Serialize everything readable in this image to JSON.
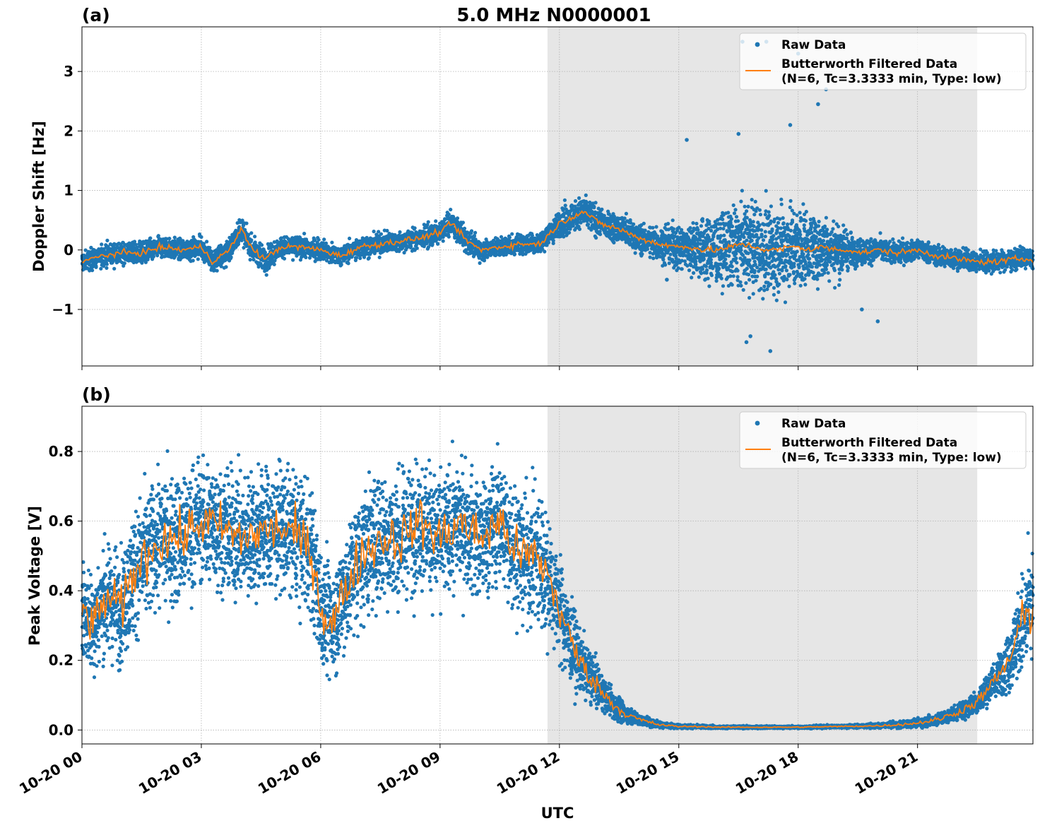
{
  "figure": {
    "title": "5.0 MHz N0000001",
    "xlabel": "UTC"
  },
  "colors": {
    "raw": "#1f77b4",
    "filtered": "#ff7f0e",
    "shade": "#e6e6e6",
    "grid": "#b0b0b0"
  },
  "chart_data": [
    {
      "type": "scatter",
      "panel_label": "(a)",
      "ylabel": "Doppler Shift [Hz]",
      "xlim_hours": [
        0,
        23.9
      ],
      "ylim": [
        -1.95,
        3.75
      ],
      "yticks": [
        -1,
        0,
        1,
        2,
        3
      ],
      "ytick_labels": [
        "−1",
        "0",
        "1",
        "2",
        "3"
      ],
      "xticks_hours": [
        0,
        3,
        6,
        9,
        12,
        15,
        18,
        21
      ],
      "grid": true,
      "legend_position": "top-right",
      "shaded_region_hours": [
        11.7,
        22.5
      ],
      "series": [
        {
          "name": "Raw Data",
          "style": "points",
          "x_hours": [
            0,
            0.5,
            1,
            1.5,
            2,
            2.5,
            3,
            3.3,
            3.7,
            4,
            4.3,
            4.6,
            5,
            5.5,
            6,
            6.5,
            7,
            7.5,
            8,
            8.5,
            9,
            9.3,
            9.6,
            10,
            10.5,
            11,
            11.5,
            11.8,
            12,
            12.3,
            12.6,
            13,
            13.5,
            14,
            14.5,
            15,
            15.3,
            15.6,
            16,
            16.3,
            16.6,
            16.9,
            17.2,
            17.5,
            17.8,
            18,
            18.3,
            18.6,
            19,
            19.3,
            19.6,
            20,
            20.5,
            21,
            21.5,
            22,
            22.5,
            23,
            23.5,
            23.9
          ],
          "y_center": [
            -0.2,
            -0.1,
            -0.05,
            -0.05,
            0.05,
            0,
            0.05,
            -0.2,
            0,
            0.35,
            0,
            -0.15,
            0.05,
            0.05,
            0,
            -0.1,
            0.05,
            0.1,
            0.15,
            0.2,
            0.3,
            0.45,
            0.2,
            0,
            0.05,
            0.1,
            0.1,
            0.3,
            0.45,
            0.55,
            0.65,
            0.45,
            0.35,
            0.2,
            0.1,
            0.05,
            0.05,
            0,
            0,
            0.05,
            0.1,
            0.05,
            0,
            0,
            0.05,
            0.05,
            0,
            0.05,
            0,
            0,
            -0.05,
            0,
            -0.05,
            0,
            -0.1,
            -0.15,
            -0.2,
            -0.2,
            -0.15,
            -0.15
          ],
          "y_spread": [
            0.3,
            0.3,
            0.3,
            0.3,
            0.3,
            0.3,
            0.3,
            0.35,
            0.35,
            0.35,
            0.35,
            0.35,
            0.3,
            0.3,
            0.3,
            0.3,
            0.3,
            0.3,
            0.3,
            0.3,
            0.3,
            0.3,
            0.35,
            0.3,
            0.3,
            0.3,
            0.3,
            0.35,
            0.4,
            0.45,
            0.45,
            0.4,
            0.4,
            0.4,
            0.5,
            0.7,
            0.8,
            0.9,
            1.0,
            1.1,
            1.2,
            1.3,
            1.3,
            1.2,
            1.2,
            1.2,
            1.0,
            1.0,
            0.8,
            0.5,
            0.4,
            0.35,
            0.3,
            0.3,
            0.3,
            0.3,
            0.3,
            0.3,
            0.3,
            0.3
          ],
          "outliers": [
            [
              16.6,
              3.5
            ],
            [
              17.2,
              3.5
            ],
            [
              18,
              3.3
            ],
            [
              18.7,
              2.7
            ],
            [
              18.5,
              2.45
            ],
            [
              16.5,
              1.95
            ],
            [
              17.8,
              2.1
            ],
            [
              15.2,
              1.85
            ],
            [
              16.8,
              -1.45
            ],
            [
              17.3,
              -1.7
            ],
            [
              16.7,
              -1.55
            ],
            [
              20,
              -1.2
            ],
            [
              19.6,
              -1.0
            ],
            [
              14.7,
              -0.5
            ]
          ]
        },
        {
          "name": "Butterworth Filtered Data\n(N=6, Tc=3.3333 min, Type: low)",
          "legend_lines": [
            "Butterworth Filtered Data",
            "(N=6, Tc=3.3333 min, Type: low)"
          ],
          "style": "line",
          "x_hours": [
            0,
            0.5,
            1,
            1.5,
            2,
            2.5,
            3,
            3.3,
            3.7,
            4,
            4.3,
            4.6,
            5,
            5.5,
            6,
            6.5,
            7,
            7.5,
            8,
            8.5,
            9,
            9.3,
            9.6,
            10,
            10.5,
            11,
            11.5,
            11.8,
            12,
            12.3,
            12.6,
            13,
            13.5,
            14,
            14.5,
            15,
            15.3,
            15.6,
            16,
            16.3,
            16.6,
            16.9,
            17.2,
            17.5,
            17.8,
            18,
            18.3,
            18.6,
            19,
            19.3,
            19.6,
            20,
            20.5,
            21,
            21.5,
            22,
            22.5,
            23,
            23.5,
            23.9
          ],
          "y": [
            -0.2,
            -0.1,
            -0.05,
            -0.05,
            0.05,
            0,
            0.05,
            -0.2,
            0,
            0.35,
            0,
            -0.15,
            0.05,
            0.05,
            0,
            -0.1,
            0.05,
            0.1,
            0.15,
            0.2,
            0.3,
            0.45,
            0.2,
            0,
            0.05,
            0.1,
            0.1,
            0.3,
            0.45,
            0.55,
            0.65,
            0.45,
            0.35,
            0.2,
            0.1,
            0.05,
            0.05,
            0,
            0,
            0.05,
            0.1,
            0.05,
            0,
            0,
            0.05,
            0.05,
            0,
            0.05,
            0,
            0,
            -0.05,
            0,
            -0.05,
            0,
            -0.1,
            -0.15,
            -0.2,
            -0.2,
            -0.15,
            -0.15
          ]
        }
      ]
    },
    {
      "type": "scatter",
      "panel_label": "(b)",
      "ylabel": "Peak Voltage [V]",
      "xlim_hours": [
        0,
        23.9
      ],
      "ylim": [
        -0.04,
        0.93
      ],
      "yticks": [
        0.0,
        0.2,
        0.4,
        0.6,
        0.8
      ],
      "ytick_labels": [
        "0.0",
        "0.2",
        "0.4",
        "0.6",
        "0.8"
      ],
      "xticks_hours": [
        0,
        3,
        6,
        9,
        12,
        15,
        18,
        21
      ],
      "xtick_labels": [
        "10-20 00",
        "10-20 03",
        "10-20 06",
        "10-20 09",
        "10-20 12",
        "10-20 15",
        "10-20 18",
        "10-20 21"
      ],
      "grid": true,
      "legend_position": "top-right",
      "shaded_region_hours": [
        11.7,
        22.5
      ],
      "series": [
        {
          "name": "Raw Data",
          "style": "points",
          "x_hours": [
            0,
            0.3,
            0.6,
            1,
            1.3,
            1.6,
            2,
            2.5,
            3,
            3.5,
            4,
            4.5,
            5,
            5.5,
            5.8,
            6,
            6.3,
            6.6,
            7,
            7.5,
            8,
            8.5,
            9,
            9.5,
            10,
            10.5,
            11,
            11.4,
            11.7,
            12,
            12.3,
            12.6,
            13,
            13.3,
            13.6,
            14,
            14.5,
            15,
            15.5,
            16,
            17,
            18,
            19,
            20,
            20.5,
            21,
            21.5,
            22,
            22.5,
            23,
            23.3,
            23.6,
            23.9
          ],
          "y_center": [
            0.35,
            0.3,
            0.38,
            0.35,
            0.45,
            0.5,
            0.55,
            0.55,
            0.6,
            0.58,
            0.55,
            0.57,
            0.58,
            0.55,
            0.5,
            0.35,
            0.3,
            0.4,
            0.5,
            0.55,
            0.55,
            0.6,
            0.55,
            0.6,
            0.55,
            0.6,
            0.5,
            0.5,
            0.45,
            0.35,
            0.25,
            0.18,
            0.12,
            0.08,
            0.05,
            0.03,
            0.015,
            0.01,
            0.01,
            0.008,
            0.008,
            0.008,
            0.01,
            0.012,
            0.015,
            0.02,
            0.03,
            0.05,
            0.08,
            0.15,
            0.2,
            0.3,
            0.35
          ],
          "y_spread": [
            0.25,
            0.25,
            0.25,
            0.28,
            0.3,
            0.32,
            0.32,
            0.32,
            0.3,
            0.3,
            0.3,
            0.3,
            0.3,
            0.32,
            0.32,
            0.3,
            0.28,
            0.3,
            0.32,
            0.32,
            0.32,
            0.3,
            0.3,
            0.3,
            0.3,
            0.3,
            0.32,
            0.32,
            0.3,
            0.25,
            0.2,
            0.15,
            0.1,
            0.07,
            0.05,
            0.03,
            0.015,
            0.01,
            0.008,
            0.006,
            0.006,
            0.006,
            0.008,
            0.01,
            0.015,
            0.02,
            0.03,
            0.04,
            0.06,
            0.1,
            0.15,
            0.25,
            0.3
          ],
          "outliers": []
        },
        {
          "name": "Butterworth Filtered Data\n(N=6, Tc=3.3333 min, Type: low)",
          "legend_lines": [
            "Butterworth Filtered Data",
            "(N=6, Tc=3.3333 min, Type: low)"
          ],
          "style": "line",
          "x_hours": [
            0,
            0.3,
            0.6,
            1,
            1.3,
            1.6,
            2,
            2.5,
            3,
            3.5,
            4,
            4.5,
            5,
            5.5,
            5.8,
            6,
            6.3,
            6.6,
            7,
            7.5,
            8,
            8.5,
            9,
            9.5,
            10,
            10.5,
            11,
            11.4,
            11.7,
            12,
            12.3,
            12.6,
            13,
            13.3,
            13.6,
            14,
            14.5,
            15,
            15.5,
            16,
            17,
            18,
            19,
            20,
            20.5,
            21,
            21.5,
            22,
            22.5,
            23,
            23.3,
            23.6,
            23.9
          ],
          "y": [
            0.35,
            0.3,
            0.38,
            0.35,
            0.45,
            0.5,
            0.55,
            0.55,
            0.6,
            0.58,
            0.55,
            0.57,
            0.58,
            0.55,
            0.5,
            0.35,
            0.3,
            0.4,
            0.5,
            0.55,
            0.55,
            0.6,
            0.55,
            0.6,
            0.55,
            0.6,
            0.5,
            0.5,
            0.45,
            0.35,
            0.25,
            0.18,
            0.12,
            0.08,
            0.05,
            0.03,
            0.015,
            0.01,
            0.01,
            0.008,
            0.008,
            0.008,
            0.01,
            0.012,
            0.015,
            0.02,
            0.03,
            0.05,
            0.08,
            0.15,
            0.2,
            0.3,
            0.35
          ]
        }
      ]
    }
  ]
}
